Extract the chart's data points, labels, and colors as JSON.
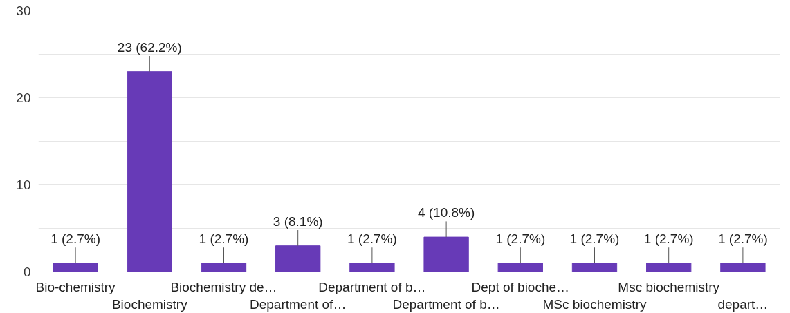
{
  "chart_data": {
    "type": "bar",
    "categories": [
      "Bio-chemistry",
      "Biochemistry",
      "Biochemistry de…",
      "Department of…",
      "Department of b…",
      "Department of b…",
      "Dept of bioche…",
      "MSc biochemistry",
      "Msc biochemistry",
      "depart…"
    ],
    "values": [
      1,
      23,
      1,
      3,
      1,
      4,
      1,
      1,
      1,
      1
    ],
    "value_labels": [
      "1 (2.7%)",
      "23 (62.2%)",
      "1 (2.7%)",
      "3 (8.1%)",
      "1 (2.7%)",
      "4 (10.8%)",
      "1 (2.7%)",
      "1 (2.7%)",
      "1 (2.7%)",
      "1 (2.7%)"
    ],
    "color": "#673ab7",
    "ylim": [
      0,
      30
    ],
    "yticks": [
      0,
      {
        "value": 5,
        "label": null
      },
      10,
      {
        "value": 15,
        "label": null
      },
      20,
      {
        "value": 25,
        "label": null
      },
      30
    ],
    "grid": "y"
  }
}
